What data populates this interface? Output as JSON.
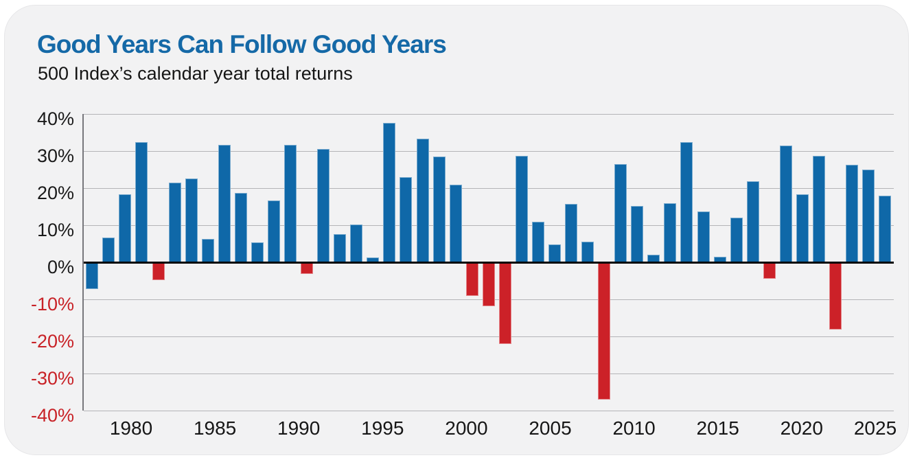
{
  "title": "Good Years Can Follow Good Years",
  "subtitle": "500 Index’s calendar year total returns",
  "chart_data": {
    "type": "bar",
    "title": "Good Years Can Follow Good Years",
    "subtitle": "500 Index’s calendar year total returns",
    "x": [
      1977,
      1978,
      1979,
      1980,
      1981,
      1982,
      1983,
      1984,
      1985,
      1986,
      1987,
      1988,
      1989,
      1990,
      1991,
      1992,
      1993,
      1994,
      1995,
      1996,
      1997,
      1998,
      1999,
      2000,
      2001,
      2002,
      2003,
      2004,
      2005,
      2006,
      2007,
      2008,
      2009,
      2010,
      2011,
      2012,
      2013,
      2014,
      2015,
      2016,
      2017,
      2018,
      2019,
      2020,
      2021,
      2022,
      2023,
      2024,
      2025
    ],
    "values": [
      -7.2,
      6.6,
      18.4,
      32.4,
      -4.9,
      21.5,
      22.6,
      6.3,
      31.7,
      18.7,
      5.3,
      16.6,
      31.7,
      -3.1,
      30.5,
      7.6,
      10.1,
      1.3,
      37.6,
      23.0,
      33.4,
      28.6,
      21.0,
      -9.1,
      -11.9,
      -22.1,
      28.7,
      10.9,
      4.9,
      15.8,
      5.5,
      -37.0,
      26.5,
      15.1,
      2.1,
      16.0,
      32.4,
      13.7,
      1.4,
      12.0,
      21.8,
      -4.4,
      31.5,
      18.4,
      28.7,
      -18.1,
      26.3,
      25.0,
      18.0
    ],
    "bar_colors": [
      "blue",
      "blue",
      "blue",
      "blue",
      "red",
      "blue",
      "blue",
      "blue",
      "blue",
      "blue",
      "blue",
      "blue",
      "blue",
      "red",
      "blue",
      "blue",
      "blue",
      "blue",
      "blue",
      "blue",
      "blue",
      "blue",
      "blue",
      "red",
      "red",
      "red",
      "blue",
      "blue",
      "blue",
      "blue",
      "blue",
      "red",
      "blue",
      "blue",
      "blue",
      "blue",
      "blue",
      "blue",
      "blue",
      "blue",
      "blue",
      "red",
      "blue",
      "blue",
      "blue",
      "red",
      "blue",
      "blue",
      "blue"
    ],
    "xlabel": "",
    "ylabel": "",
    "ylim": [
      -40,
      40
    ],
    "y_tick_labels": [
      "40%",
      "30%",
      "20%",
      "10%",
      "0%",
      "-10%",
      "-20%",
      "-30%",
      "-40%"
    ],
    "x_tick_labels": [
      "1980",
      "1985",
      "1990",
      "1995",
      "2000",
      "2005",
      "2010",
      "2015",
      "2020",
      "2025"
    ],
    "grid": "horizontal",
    "zero_line": true,
    "legend": "none",
    "colors": {
      "bar_positive": "#0f68a8",
      "bar_negative": "#cc2128",
      "title_blue": "#1569a7",
      "negative_tick_red": "#c82227"
    }
  }
}
